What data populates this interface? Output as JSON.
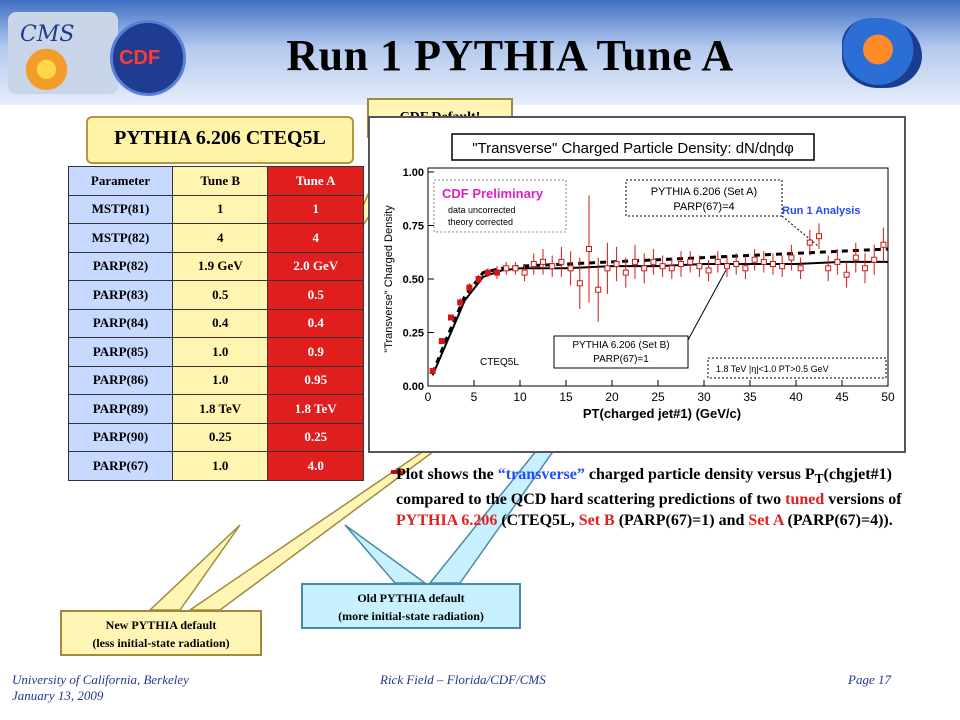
{
  "title": "Run 1 PYTHIA Tune A",
  "logos": {
    "cms": "CMS",
    "cdf": "CDF"
  },
  "scroll_label": "PYTHIA 6.206 CTEQ5L",
  "table": {
    "headers": [
      "Parameter",
      "Tune B",
      "Tune A"
    ],
    "rows": [
      [
        "MSTP(81)",
        "1",
        "1"
      ],
      [
        "MSTP(82)",
        "4",
        "4"
      ],
      [
        "PARP(82)",
        "1.9 GeV",
        "2.0 GeV"
      ],
      [
        "PARP(83)",
        "0.5",
        "0.5"
      ],
      [
        "PARP(84)",
        "0.4",
        "0.4"
      ],
      [
        "PARP(85)",
        "1.0",
        "0.9"
      ],
      [
        "PARP(86)",
        "1.0",
        "0.95"
      ],
      [
        "PARP(89)",
        "1.8 TeV",
        "1.8 TeV"
      ],
      [
        "PARP(90)",
        "0.25",
        "0.25"
      ],
      [
        "PARP(67)",
        "1.0",
        "4.0"
      ]
    ]
  },
  "callouts": {
    "cdf_default": "CDF Default!",
    "new_line1": "New PYTHIA default",
    "new_line2": "(less initial-state  radiation)",
    "old_line1": "Old PYTHIA default",
    "old_line2": "(more initial-state radiation)"
  },
  "bullet": {
    "p1": "Plot shows the ",
    "p2": "“transverse”",
    "p3": " charged particle density versus P",
    "p3sub": "T",
    "p4": "(chgjet#1) compared to the QCD hard scattering predictions of two ",
    "p5": "tuned",
    "p6": " versions of ",
    "p7": "PYTHIA 6.206",
    "p8": " (CTEQ5L, ",
    "p9": "Set B",
    "p10": " (PARP(67)=1) and ",
    "p11": "Set A",
    "p12": " (PARP(67)=4))."
  },
  "footer": {
    "left1": "University of California, Berkeley",
    "left2": "January 13, 2009",
    "mid": "Rick Field – Florida/CDF/CMS",
    "right": "Page 17"
  },
  "colors": {
    "tuneA": "#e01e1e",
    "tuneB": "#fff5b0",
    "param": "#c7d9ff",
    "accent": "#e02020",
    "blue": "#1f4cff"
  },
  "chart_data": {
    "type": "scatter",
    "title": "\"Transverse\" Charged Particle Density: dN/dηdφ",
    "xlabel": "PT(charged jet#1)  (GeV/c)",
    "ylabel": "\"Transverse\" Charged Density",
    "xlim": [
      0,
      50
    ],
    "ylim": [
      0,
      1.0
    ],
    "xticks": [
      0,
      5,
      10,
      15,
      20,
      25,
      30,
      35,
      40,
      45,
      50
    ],
    "yticks": [
      0.0,
      0.25,
      0.5,
      0.75,
      1.0
    ],
    "ytick_labels": [
      "0.00",
      "0.25",
      "0.50",
      "0.75",
      "1.00"
    ],
    "legend": {
      "line1": "CDF Preliminary",
      "line2": "data uncorrected",
      "line3": "theory corrected"
    },
    "annotations": {
      "setA_line1": "PYTHIA 6.206 (Set A)",
      "setA_line2": "PARP(67)=4",
      "setB_line1": "PYTHIA 6.206 (Set B)",
      "setB_line2": "PARP(67)=1",
      "run1": "Run 1 Analysis",
      "cteq": "CTEQ5L",
      "cuts": "1.8 TeV |η|<1.0 PT>0.5 GeV"
    },
    "series": [
      {
        "name": "data",
        "x": [
          0.5,
          1.5,
          2.5,
          3.5,
          4.5,
          5.5,
          6.5,
          7.5,
          8.5,
          9.5,
          10.5,
          11.5,
          12.5,
          13.5,
          14.5,
          15.5,
          16.5,
          17.5,
          18.5,
          19.5,
          20.5,
          21.5,
          22.5,
          23.5,
          24.5,
          25.5,
          26.5,
          27.5,
          28.5,
          29.5,
          30.5,
          31.5,
          32.5,
          33.5,
          34.5,
          35.5,
          36.5,
          37.5,
          38.5,
          39.5,
          40.5,
          41.5,
          42.5,
          43.5,
          44.5,
          45.5,
          46.5,
          47.5,
          48.5,
          49.5
        ],
        "y": [
          0.07,
          0.21,
          0.32,
          0.39,
          0.46,
          0.5,
          0.53,
          0.53,
          0.55,
          0.55,
          0.53,
          0.57,
          0.58,
          0.56,
          0.58,
          0.55,
          0.48,
          0.64,
          0.45,
          0.55,
          0.57,
          0.53,
          0.58,
          0.55,
          0.58,
          0.56,
          0.55,
          0.57,
          0.58,
          0.56,
          0.54,
          0.58,
          0.56,
          0.57,
          0.55,
          0.59,
          0.58,
          0.57,
          0.56,
          0.6,
          0.55,
          0.67,
          0.7,
          0.55,
          0.58,
          0.52,
          0.6,
          0.55,
          0.59,
          0.66
        ],
        "err": [
          0.01,
          0.01,
          0.01,
          0.02,
          0.02,
          0.02,
          0.02,
          0.03,
          0.03,
          0.03,
          0.04,
          0.05,
          0.06,
          0.05,
          0.07,
          0.08,
          0.12,
          0.25,
          0.15,
          0.12,
          0.08,
          0.07,
          0.08,
          0.07,
          0.06,
          0.05,
          0.05,
          0.06,
          0.05,
          0.05,
          0.05,
          0.05,
          0.05,
          0.05,
          0.05,
          0.05,
          0.05,
          0.05,
          0.05,
          0.06,
          0.05,
          0.06,
          0.06,
          0.06,
          0.06,
          0.06,
          0.07,
          0.07,
          0.07,
          0.08
        ]
      },
      {
        "name": "PYTHIA 6.206 (Set A)",
        "x": [
          0.5,
          2,
          4,
          6,
          8,
          10,
          15,
          20,
          25,
          30,
          35,
          40,
          45,
          50
        ],
        "y": [
          0.06,
          0.22,
          0.42,
          0.53,
          0.55,
          0.56,
          0.57,
          0.58,
          0.59,
          0.6,
          0.61,
          0.62,
          0.63,
          0.64
        ]
      },
      {
        "name": "PYTHIA 6.206 (Set B)",
        "x": [
          0.5,
          2,
          4,
          6,
          8,
          10,
          15,
          20,
          25,
          30,
          35,
          40,
          45,
          50
        ],
        "y": [
          0.05,
          0.2,
          0.4,
          0.51,
          0.54,
          0.55,
          0.55,
          0.56,
          0.56,
          0.57,
          0.57,
          0.57,
          0.58,
          0.58
        ]
      }
    ]
  }
}
